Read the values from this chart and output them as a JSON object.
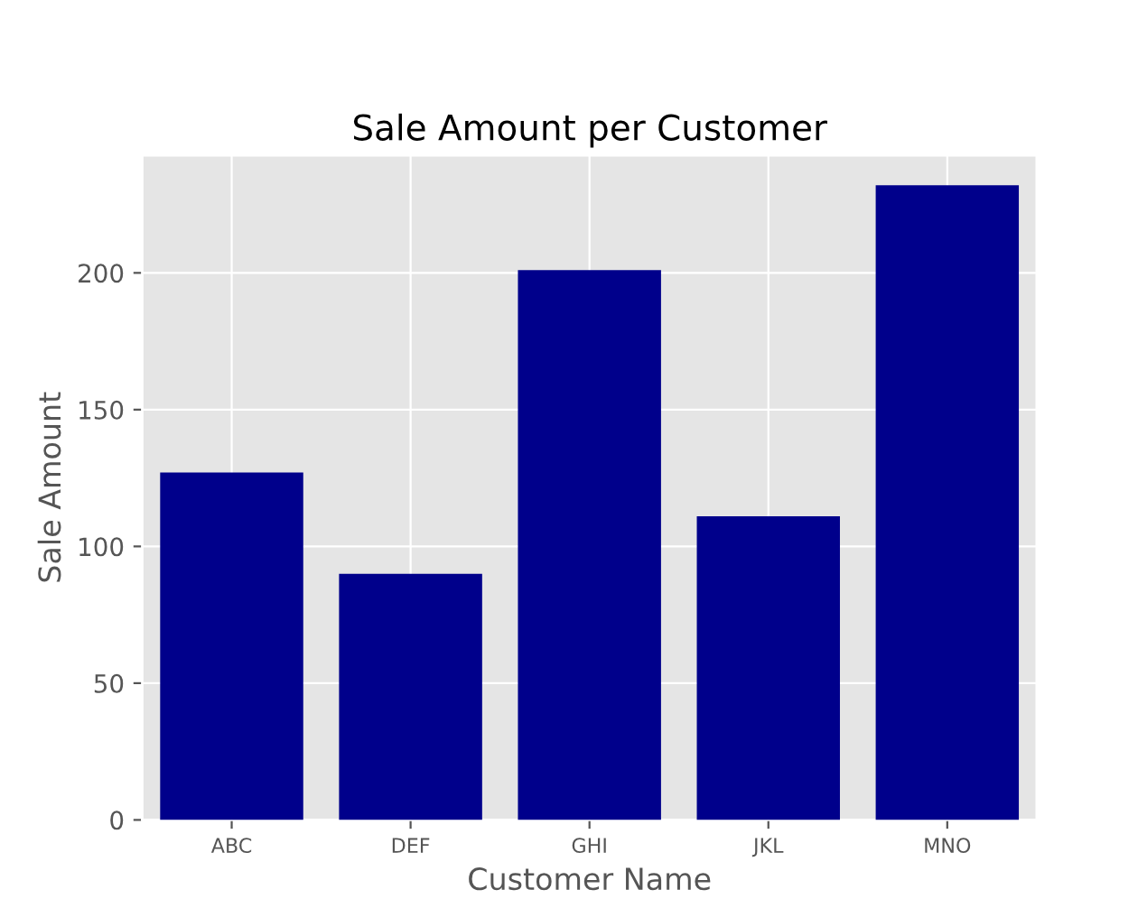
{
  "chart_data": {
    "type": "bar",
    "title": "Sale Amount per Customer",
    "xlabel": "Customer Name",
    "ylabel": "Sale Amount",
    "categories": [
      "ABC",
      "DEF",
      "GHI",
      "JKL",
      "MNO"
    ],
    "values": [
      127,
      90,
      201,
      111,
      232
    ],
    "color": "#00008b",
    "ylim": [
      0,
      243
    ],
    "yticks": [
      0,
      50,
      100,
      150,
      200
    ],
    "grid": true
  }
}
